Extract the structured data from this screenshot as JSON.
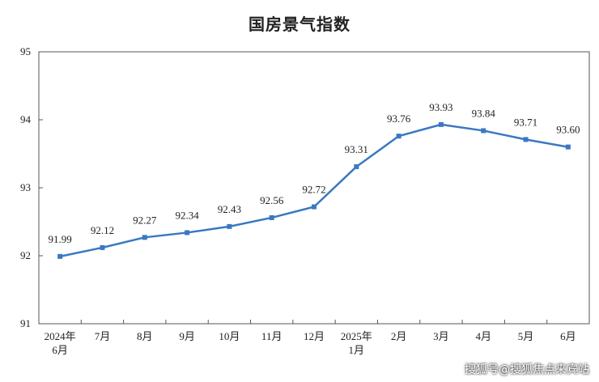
{
  "chart_data": {
    "type": "line",
    "title": "国房景气指数",
    "xlabel": "",
    "ylabel": "",
    "categories": [
      [
        "2024年",
        "6月"
      ],
      [
        "7月"
      ],
      [
        "8月"
      ],
      [
        "9月"
      ],
      [
        "10月"
      ],
      [
        "11月"
      ],
      [
        "12月"
      ],
      [
        "2025年",
        "1月"
      ],
      [
        "2月"
      ],
      [
        "3月"
      ],
      [
        "4月"
      ],
      [
        "5月"
      ],
      [
        "6月"
      ]
    ],
    "series": [
      {
        "values": [
          91.99,
          92.12,
          92.27,
          92.34,
          92.43,
          92.56,
          92.72,
          93.31,
          93.76,
          93.93,
          93.84,
          93.71,
          93.6
        ],
        "labels": [
          "91.99",
          "92.12",
          "92.27",
          "92.34",
          "92.43",
          "92.56",
          "92.72",
          "93.31",
          "93.76",
          "93.93",
          "93.84",
          "93.71",
          "93.60"
        ]
      }
    ],
    "ylim": [
      91,
      95
    ],
    "yticks": [
      91,
      92,
      93,
      94,
      95
    ],
    "grid": false,
    "legend": "none",
    "colors": {
      "line": "#3a78c2",
      "axis": "#555555"
    }
  },
  "watermark": "搜狐号@搜狐焦点来宾站"
}
